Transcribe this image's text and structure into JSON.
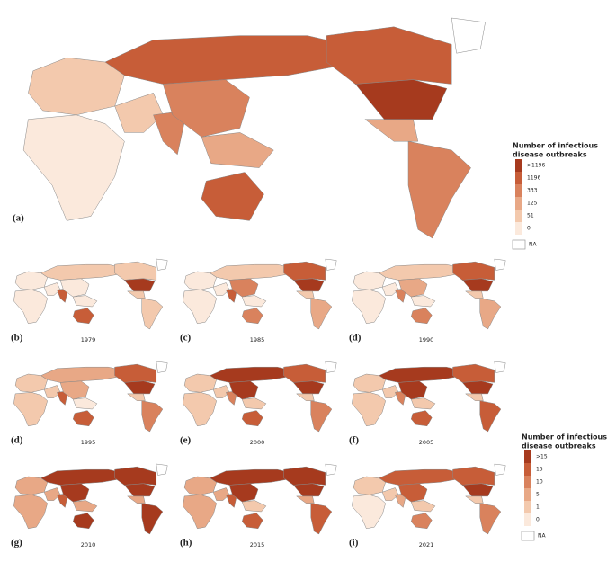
{
  "main_panel": {
    "label": "(a)"
  },
  "legend_main": {
    "title_lines": [
      "Number of infectious",
      "disease outbreaks"
    ],
    "labels": [
      ">1196",
      "1196",
      "333",
      "125",
      "51",
      "0"
    ],
    "na": "NA"
  },
  "panels": [
    {
      "label": "(b)",
      "year": "1979"
    },
    {
      "label": "(c)",
      "year": "1985"
    },
    {
      "label": "(d)",
      "year": "1990"
    },
    {
      "label": "(d)",
      "year": "1995"
    },
    {
      "label": "(e)",
      "year": "2000"
    },
    {
      "label": "(f)",
      "year": "2005"
    },
    {
      "label": "(g)",
      "year": "2010"
    },
    {
      "label": "(h)",
      "year": "2015"
    },
    {
      "label": "(i)",
      "year": "2021"
    }
  ],
  "legend_small": {
    "title_lines": [
      "Number of infectious",
      "disease outbreaks"
    ],
    "labels": [
      ">15",
      "15",
      "10",
      "5",
      "1",
      "0"
    ],
    "na": "NA"
  },
  "palette": [
    "#fbe9dc",
    "#f3c9ad",
    "#e8a886",
    "#d9825d",
    "#c75d38",
    "#a63a1e"
  ]
}
